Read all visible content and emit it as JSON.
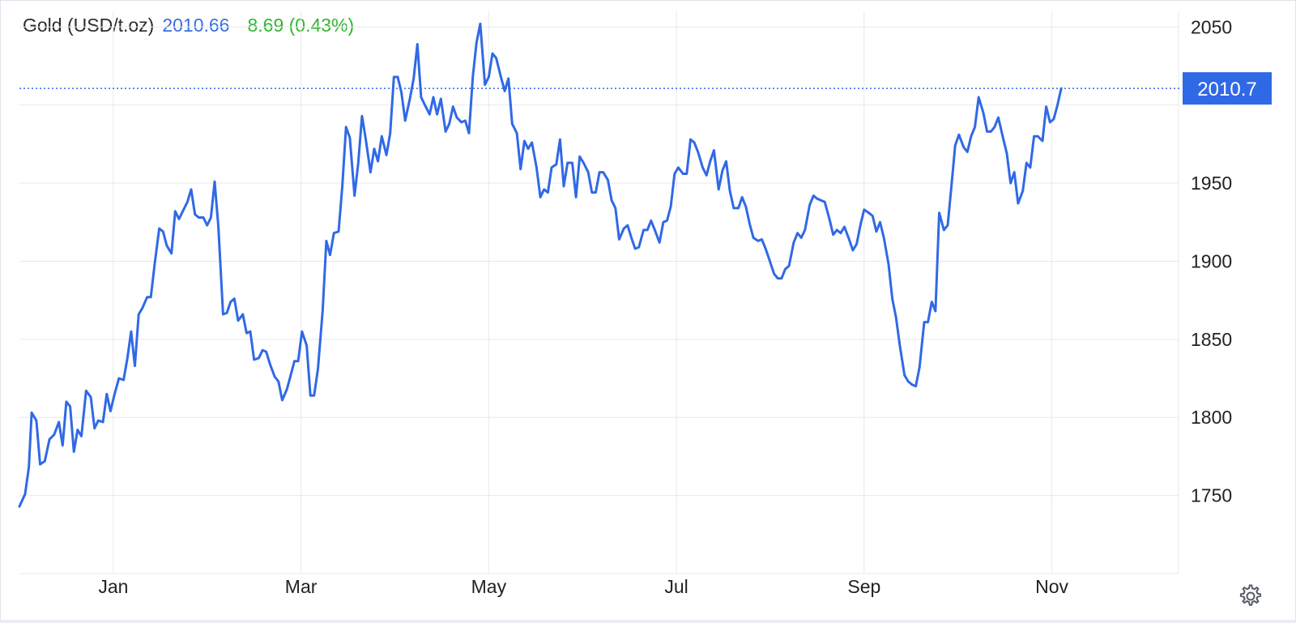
{
  "header": {
    "title": "Gold (USD/t.oz)",
    "price": "2010.66",
    "change": "8.69 (0.43%)"
  },
  "colors": {
    "line": "#3069e6",
    "price_text": "#3a6ee0",
    "change_text": "#2fb62f",
    "grid": "#e6e9ee",
    "badge_bg": "#3069e6",
    "badge_text": "#ffffff"
  },
  "icons": {
    "settings": "gear-icon"
  },
  "chart_data": {
    "type": "line",
    "title": "Gold (USD/t.oz)",
    "xlabel": "",
    "ylabel": "",
    "ylim": [
      1700,
      2060
    ],
    "xlim": [
      0,
      12.35
    ],
    "y_ticks": [
      1750,
      1800,
      1850,
      1900,
      1950,
      2050
    ],
    "x_ticks": [
      {
        "label": "Jan",
        "x": 1.0
      },
      {
        "label": "Mar",
        "x": 3.0
      },
      {
        "label": "May",
        "x": 5.0
      },
      {
        "label": "Jul",
        "x": 7.0
      },
      {
        "label": "Sep",
        "x": 9.0
      },
      {
        "label": "Nov",
        "x": 11.0
      }
    ],
    "last_value_label": "2010.7",
    "last_value": 2010.66,
    "grid": true,
    "legend": "none",
    "series": [
      {
        "values": [
          [
            0.0,
            1743
          ],
          [
            0.06,
            1751
          ],
          [
            0.1,
            1768
          ],
          [
            0.13,
            1803
          ],
          [
            0.18,
            1798
          ],
          [
            0.22,
            1770
          ],
          [
            0.27,
            1772
          ],
          [
            0.32,
            1786
          ],
          [
            0.37,
            1789
          ],
          [
            0.42,
            1797
          ],
          [
            0.46,
            1782
          ],
          [
            0.5,
            1810
          ],
          [
            0.54,
            1807
          ],
          [
            0.58,
            1778
          ],
          [
            0.62,
            1792
          ],
          [
            0.66,
            1788
          ],
          [
            0.71,
            1817
          ],
          [
            0.76,
            1813
          ],
          [
            0.8,
            1793
          ],
          [
            0.84,
            1798
          ],
          [
            0.89,
            1797
          ],
          [
            0.93,
            1815
          ],
          [
            0.97,
            1804
          ],
          [
            1.01,
            1814
          ],
          [
            1.06,
            1825
          ],
          [
            1.11,
            1824
          ],
          [
            1.15,
            1838
          ],
          [
            1.19,
            1855
          ],
          [
            1.23,
            1833
          ],
          [
            1.27,
            1866
          ],
          [
            1.31,
            1870
          ],
          [
            1.36,
            1877
          ],
          [
            1.4,
            1877
          ],
          [
            1.44,
            1898
          ],
          [
            1.49,
            1921
          ],
          [
            1.53,
            1919
          ],
          [
            1.57,
            1910
          ],
          [
            1.62,
            1905
          ],
          [
            1.66,
            1932
          ],
          [
            1.7,
            1927
          ],
          [
            1.74,
            1932
          ],
          [
            1.79,
            1938
          ],
          [
            1.83,
            1946
          ],
          [
            1.87,
            1930
          ],
          [
            1.91,
            1928
          ],
          [
            1.96,
            1928
          ],
          [
            2.0,
            1923
          ],
          [
            2.04,
            1928
          ],
          [
            2.08,
            1951
          ],
          [
            2.12,
            1922
          ],
          [
            2.17,
            1866
          ],
          [
            2.21,
            1867
          ],
          [
            2.25,
            1874
          ],
          [
            2.29,
            1876
          ],
          [
            2.33,
            1862
          ],
          [
            2.38,
            1866
          ],
          [
            2.42,
            1854
          ],
          [
            2.46,
            1855
          ],
          [
            2.5,
            1837
          ],
          [
            2.55,
            1838
          ],
          [
            2.59,
            1843
          ],
          [
            2.63,
            1842
          ],
          [
            2.67,
            1834
          ],
          [
            2.72,
            1826
          ],
          [
            2.76,
            1823
          ],
          [
            2.8,
            1811
          ],
          [
            2.85,
            1818
          ],
          [
            2.89,
            1827
          ],
          [
            2.93,
            1836
          ],
          [
            2.97,
            1836
          ],
          [
            3.01,
            1855
          ],
          [
            3.06,
            1846
          ],
          [
            3.1,
            1814
          ],
          [
            3.14,
            1814
          ],
          [
            3.18,
            1831
          ],
          [
            3.23,
            1868
          ],
          [
            3.27,
            1913
          ],
          [
            3.31,
            1904
          ],
          [
            3.35,
            1918
          ],
          [
            3.4,
            1919
          ],
          [
            3.44,
            1948
          ],
          [
            3.48,
            1986
          ],
          [
            3.52,
            1979
          ],
          [
            3.57,
            1942
          ],
          [
            3.61,
            1963
          ],
          [
            3.65,
            1993
          ],
          [
            3.69,
            1978
          ],
          [
            3.74,
            1957
          ],
          [
            3.78,
            1972
          ],
          [
            3.82,
            1964
          ],
          [
            3.86,
            1980
          ],
          [
            3.91,
            1968
          ],
          [
            3.95,
            1982
          ],
          [
            3.99,
            2018
          ],
          [
            4.03,
            2018
          ],
          [
            4.07,
            2008
          ],
          [
            4.11,
            1990
          ],
          [
            4.16,
            2004
          ],
          [
            4.2,
            2017
          ],
          [
            4.24,
            2039
          ],
          [
            4.28,
            2005
          ],
          [
            4.32,
            2000
          ],
          [
            4.37,
            1994
          ],
          [
            4.41,
            2005
          ],
          [
            4.45,
            1994
          ],
          [
            4.49,
            2004
          ],
          [
            4.54,
            1983
          ],
          [
            4.58,
            1988
          ],
          [
            4.62,
            1999
          ],
          [
            4.66,
            1992
          ],
          [
            4.71,
            1989
          ],
          [
            4.75,
            1990
          ],
          [
            4.79,
            1982
          ],
          [
            4.83,
            2018
          ],
          [
            4.87,
            2040
          ],
          [
            4.91,
            2052
          ],
          [
            4.96,
            2013
          ],
          [
            5.0,
            2018
          ],
          [
            5.04,
            2033
          ],
          [
            5.08,
            2030
          ],
          [
            5.13,
            2018
          ],
          [
            5.17,
            2009
          ],
          [
            5.21,
            2017
          ],
          [
            5.25,
            1988
          ],
          [
            5.3,
            1982
          ],
          [
            5.34,
            1959
          ],
          [
            5.38,
            1977
          ],
          [
            5.42,
            1972
          ],
          [
            5.46,
            1976
          ],
          [
            5.51,
            1960
          ],
          [
            5.55,
            1941
          ],
          [
            5.59,
            1946
          ],
          [
            5.63,
            1944
          ],
          [
            5.67,
            1960
          ],
          [
            5.72,
            1962
          ],
          [
            5.76,
            1978
          ],
          [
            5.8,
            1948
          ],
          [
            5.84,
            1963
          ],
          [
            5.89,
            1963
          ],
          [
            5.93,
            1941
          ],
          [
            5.97,
            1967
          ],
          [
            6.01,
            1963
          ],
          [
            6.06,
            1957
          ],
          [
            6.1,
            1944
          ],
          [
            6.14,
            1944
          ],
          [
            6.18,
            1957
          ],
          [
            6.22,
            1957
          ],
          [
            6.27,
            1952
          ],
          [
            6.31,
            1939
          ],
          [
            6.35,
            1934
          ],
          [
            6.39,
            1914
          ],
          [
            6.44,
            1921
          ],
          [
            6.48,
            1923
          ],
          [
            6.52,
            1915
          ],
          [
            6.56,
            1908
          ],
          [
            6.6,
            1909
          ],
          [
            6.65,
            1920
          ],
          [
            6.69,
            1920
          ],
          [
            6.73,
            1926
          ],
          [
            6.77,
            1920
          ],
          [
            6.82,
            1912
          ],
          [
            6.86,
            1925
          ],
          [
            6.9,
            1926
          ],
          [
            6.94,
            1935
          ],
          [
            6.98,
            1956
          ],
          [
            7.02,
            1960
          ],
          [
            7.07,
            1956
          ],
          [
            7.11,
            1956
          ],
          [
            7.15,
            1978
          ],
          [
            7.19,
            1976
          ],
          [
            7.23,
            1970
          ],
          [
            7.28,
            1960
          ],
          [
            7.32,
            1955
          ],
          [
            7.36,
            1964
          ],
          [
            7.4,
            1971
          ],
          [
            7.45,
            1946
          ],
          [
            7.49,
            1958
          ],
          [
            7.53,
            1964
          ],
          [
            7.57,
            1945
          ],
          [
            7.61,
            1934
          ],
          [
            7.66,
            1934
          ],
          [
            7.7,
            1941
          ],
          [
            7.74,
            1935
          ],
          [
            7.78,
            1924
          ],
          [
            7.82,
            1915
          ],
          [
            7.87,
            1913
          ],
          [
            7.91,
            1914
          ],
          [
            7.95,
            1908
          ],
          [
            7.99,
            1901
          ],
          [
            8.04,
            1892
          ],
          [
            8.08,
            1889
          ],
          [
            8.12,
            1889
          ],
          [
            8.16,
            1895
          ],
          [
            8.2,
            1897
          ],
          [
            8.25,
            1912
          ],
          [
            8.29,
            1918
          ],
          [
            8.33,
            1915
          ],
          [
            8.37,
            1920
          ],
          [
            8.42,
            1936
          ],
          [
            8.46,
            1942
          ],
          [
            8.5,
            1940
          ],
          [
            8.54,
            1939
          ],
          [
            8.58,
            1938
          ],
          [
            8.63,
            1927
          ],
          [
            8.67,
            1917
          ],
          [
            8.71,
            1920
          ],
          [
            8.75,
            1918
          ],
          [
            8.79,
            1922
          ],
          [
            8.84,
            1914
          ],
          [
            8.88,
            1907
          ],
          [
            8.92,
            1911
          ],
          [
            8.96,
            1923
          ],
          [
            9.0,
            1933
          ],
          [
            9.05,
            1931
          ],
          [
            9.09,
            1929
          ],
          [
            9.13,
            1919
          ],
          [
            9.17,
            1925
          ],
          [
            9.21,
            1915
          ],
          [
            9.26,
            1898
          ],
          [
            9.3,
            1876
          ],
          [
            9.34,
            1864
          ],
          [
            9.38,
            1846
          ],
          [
            9.43,
            1827
          ],
          [
            9.47,
            1823
          ],
          [
            9.51,
            1821
          ],
          [
            9.55,
            1820
          ],
          [
            9.59,
            1832
          ],
          [
            9.64,
            1861
          ],
          [
            9.68,
            1861
          ],
          [
            9.72,
            1874
          ],
          [
            9.76,
            1868
          ],
          [
            9.8,
            1931
          ],
          [
            9.85,
            1920
          ],
          [
            9.89,
            1923
          ],
          [
            9.93,
            1948
          ],
          [
            9.97,
            1974
          ],
          [
            10.01,
            1981
          ],
          [
            10.06,
            1973
          ],
          [
            10.1,
            1970
          ],
          [
            10.14,
            1980
          ],
          [
            10.18,
            1986
          ],
          [
            10.22,
            2005
          ],
          [
            10.27,
            1995
          ],
          [
            10.31,
            1983
          ],
          [
            10.35,
            1983
          ],
          [
            10.39,
            1986
          ],
          [
            10.43,
            1992
          ],
          [
            10.48,
            1979
          ],
          [
            10.52,
            1969
          ],
          [
            10.56,
            1950
          ],
          [
            10.6,
            1957
          ],
          [
            10.64,
            1937
          ],
          [
            10.69,
            1945
          ],
          [
            10.73,
            1963
          ],
          [
            10.77,
            1960
          ],
          [
            10.81,
            1980
          ],
          [
            10.85,
            1980
          ],
          [
            10.9,
            1977
          ],
          [
            10.94,
            1999
          ],
          [
            10.98,
            1989
          ],
          [
            11.02,
            1991
          ],
          [
            11.06,
            2000
          ],
          [
            11.1,
            2010.66
          ]
        ]
      }
    ]
  }
}
